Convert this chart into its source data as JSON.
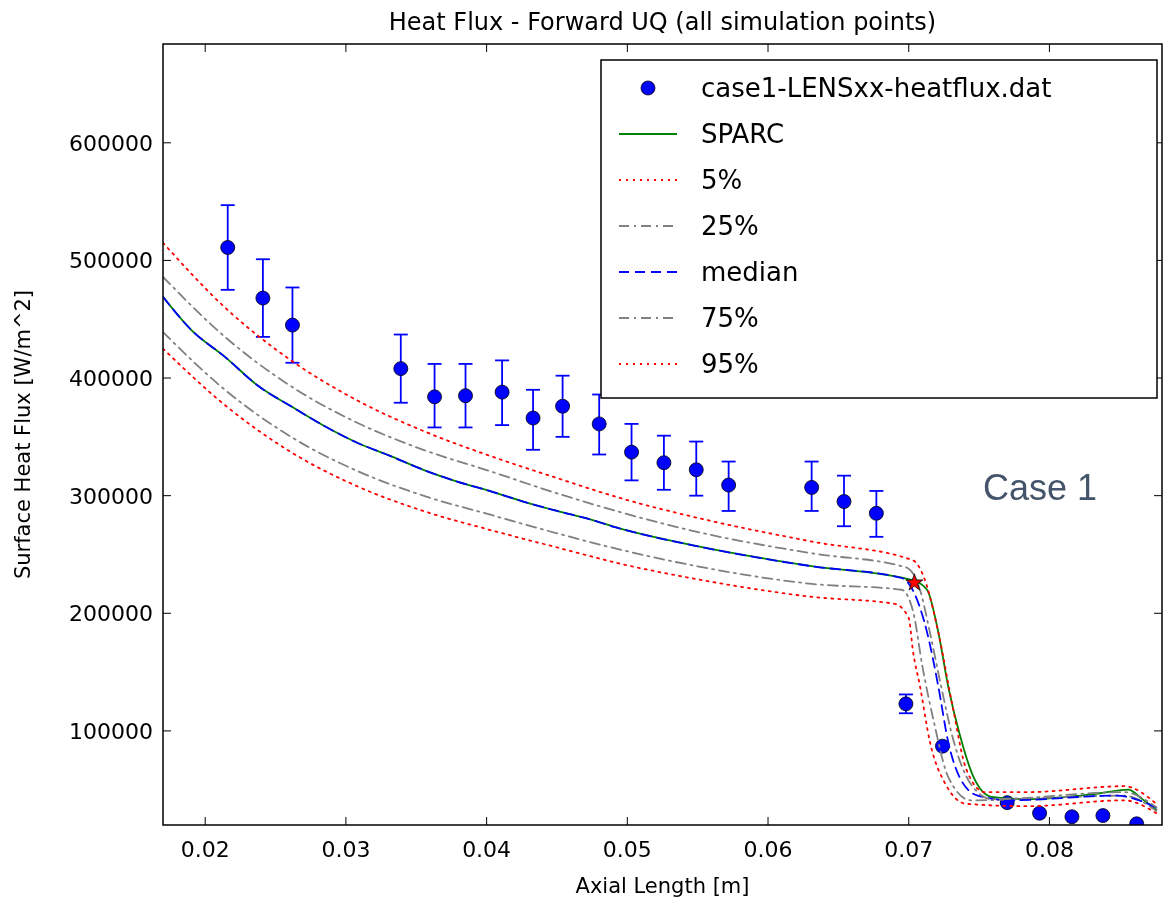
{
  "chart_data": {
    "type": "line",
    "title": "Heat Flux - Forward UQ (all simulation points)",
    "xlabel": "Axial Length [m]",
    "ylabel": "Surface Heat Flux [W/m^2]",
    "xlim": [
      0.017,
      0.088
    ],
    "xticks": [
      {
        "value": 0.02,
        "label": "0.02"
      },
      {
        "value": 0.03,
        "label": "0.03"
      },
      {
        "value": 0.04,
        "label": "0.04"
      },
      {
        "value": 0.05,
        "label": "0.05"
      },
      {
        "value": 0.06,
        "label": "0.06"
      },
      {
        "value": 0.07,
        "label": "0.07"
      },
      {
        "value": 0.08,
        "label": "0.08"
      }
    ],
    "ylim": [
      20000,
      684000
    ],
    "yticks": [
      100000,
      200000,
      300000,
      400000,
      500000,
      600000
    ],
    "legend": "top right",
    "grid": false,
    "annotations": [
      "Case 1"
    ],
    "series": [
      {
        "name": "case1-LENSxx-heatflux.dat",
        "type": "scatter",
        "marker": "circle",
        "color": "#0000ff",
        "x": [
          0.0216,
          0.0241,
          0.0262,
          0.0339,
          0.0363,
          0.0385,
          0.0411,
          0.0433,
          0.0454,
          0.048,
          0.0503,
          0.0526,
          0.0549,
          0.0572,
          0.0631,
          0.0654,
          0.0677,
          0.0698,
          0.0724,
          0.077,
          0.0793,
          0.0816,
          0.0838,
          0.0862
        ],
        "values": [
          511000,
          468000,
          445000,
          408000,
          384000,
          385000,
          388000,
          366000,
          376000,
          361000,
          337000,
          328000,
          322000,
          309000,
          307000,
          295000,
          285000,
          123000,
          87000,
          39000,
          30000,
          27000,
          28000,
          21000
        ],
        "errors": [
          [
            475000,
            547000
          ],
          [
            435000,
            501000
          ],
          [
            413000,
            477000
          ],
          [
            379000,
            437000
          ],
          [
            358000,
            412000
          ],
          [
            358000,
            412000
          ],
          [
            360000,
            415000
          ],
          [
            339000,
            390000
          ],
          [
            350000,
            402000
          ],
          [
            335000,
            386000
          ],
          [
            313000,
            361000
          ],
          [
            305000,
            351000
          ],
          [
            300000,
            346000
          ],
          [
            287000,
            329000
          ],
          [
            287000,
            329000
          ],
          [
            274000,
            317000
          ],
          [
            265000,
            304000
          ],
          [
            115000,
            131000
          ],
          null,
          null,
          null,
          null,
          null,
          null
        ]
      },
      {
        "name": "SPARC",
        "line_style": "solid",
        "color": "#008000",
        "x": [
          0.017,
          0.019,
          0.0214,
          0.0238,
          0.0261,
          0.0285,
          0.0308,
          0.0331,
          0.0355,
          0.0379,
          0.0402,
          0.0426,
          0.045,
          0.0473,
          0.0492,
          0.0554,
          0.0631,
          0.0703,
          0.0713,
          0.0721,
          0.0728,
          0.0736,
          0.0746,
          0.0759,
          0.0785,
          0.0836,
          0.0856,
          0.0866,
          0.0876
        ],
        "values": [
          469000,
          441000,
          418000,
          393000,
          376000,
          359000,
          345000,
          334000,
          322000,
          312000,
          304000,
          295000,
          287000,
          280000,
          273000,
          256000,
          240000,
          228000,
          220000,
          184000,
          138000,
          98000,
          61000,
          44000,
          42000,
          47000,
          50000,
          42000,
          33000
        ]
      },
      {
        "name": "5%",
        "line_style": "dotted",
        "color": "#ff0000",
        "x": [
          0.017,
          0.0214,
          0.0261,
          0.0308,
          0.0355,
          0.0402,
          0.045,
          0.0492,
          0.0554,
          0.0631,
          0.069,
          0.07,
          0.0703,
          0.0708,
          0.0715,
          0.0726,
          0.0741,
          0.0785,
          0.0853,
          0.0876
        ],
        "values": [
          425000,
          377000,
          337000,
          308000,
          287000,
          271000,
          256000,
          243000,
          228000,
          214000,
          208000,
          196000,
          168000,
          138000,
          91000,
          55000,
          38000,
          36000,
          41000,
          30000
        ]
      },
      {
        "name": "25%",
        "line_style": "dashdot",
        "color": "#808080",
        "x": [
          0.017,
          0.0214,
          0.0261,
          0.0308,
          0.0355,
          0.0402,
          0.045,
          0.0492,
          0.0554,
          0.0631,
          0.0695,
          0.0703,
          0.071,
          0.0718,
          0.0728,
          0.0744,
          0.0853,
          0.0876
        ],
        "values": [
          439000,
          390000,
          350000,
          321000,
          300000,
          284000,
          268000,
          255000,
          239000,
          225000,
          220000,
          202000,
          153000,
          107000,
          61000,
          41000,
          45000,
          32000
        ]
      },
      {
        "name": "median",
        "line_style": "dashed",
        "color": "#0000ff",
        "x": [
          0.017,
          0.019,
          0.0214,
          0.0238,
          0.0261,
          0.0285,
          0.0308,
          0.0331,
          0.0355,
          0.0379,
          0.0402,
          0.0426,
          0.045,
          0.0473,
          0.0492,
          0.0554,
          0.0631,
          0.0695,
          0.0704,
          0.0713,
          0.0721,
          0.0728,
          0.0736,
          0.0749,
          0.0772,
          0.0848,
          0.0861,
          0.0876
        ],
        "values": [
          469000,
          441000,
          418000,
          393000,
          376000,
          359000,
          345000,
          334000,
          322000,
          312000,
          304000,
          295000,
          287000,
          280000,
          273000,
          256000,
          240000,
          230000,
          217000,
          184000,
          138000,
          91000,
          61000,
          45000,
          41000,
          45000,
          42000,
          35000
        ]
      },
      {
        "name": "75%",
        "line_style": "dashdot",
        "color": "#808080",
        "x": [
          0.017,
          0.0214,
          0.0261,
          0.0308,
          0.0355,
          0.0402,
          0.045,
          0.0492,
          0.0554,
          0.0631,
          0.0698,
          0.0708,
          0.0715,
          0.0723,
          0.0732,
          0.0744,
          0.0759,
          0.0853,
          0.0876
        ],
        "values": [
          486000,
          435000,
          393000,
          362000,
          339000,
          321000,
          302000,
          287000,
          268000,
          251000,
          239000,
          220000,
          184000,
          138000,
          91000,
          55000,
          42000,
          48000,
          35000
        ]
      },
      {
        "name": "95%",
        "line_style": "dotted",
        "color": "#ff0000",
        "x": [
          0.017,
          0.0214,
          0.0261,
          0.0308,
          0.0355,
          0.0402,
          0.045,
          0.0492,
          0.0554,
          0.0631,
          0.0703,
          0.071,
          0.0721,
          0.0731,
          0.0741,
          0.0754,
          0.0785,
          0.0853,
          0.0876
        ],
        "values": [
          515000,
          460000,
          415000,
          381000,
          355000,
          334000,
          315000,
          299000,
          280000,
          261000,
          245000,
          233000,
          184000,
          122000,
          67000,
          48000,
          48000,
          53000,
          38000
        ]
      },
      {
        "type": "scatter",
        "marker": "star",
        "color": "#ff0000",
        "x": [
          0.0704
        ],
        "values": [
          226000
        ]
      }
    ]
  }
}
